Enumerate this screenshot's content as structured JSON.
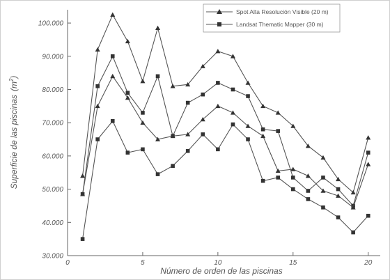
{
  "chart_data": {
    "type": "line",
    "title": "",
    "xlabel": "Número de orden de las piscinas",
    "ylabel_main": "Superficie de las piscinas",
    "ylabel_unit": "(m",
    "ylabel_sup": "2",
    "ylabel_close": ")",
    "xlim": [
      0,
      20.8
    ],
    "ylim": [
      30000,
      104000
    ],
    "xticks": [
      0,
      5,
      10,
      15,
      20
    ],
    "xtick_labels": [
      "0",
      "5",
      "10",
      "15",
      "20"
    ],
    "yticks": [
      30000,
      40000,
      50000,
      60000,
      70000,
      80000,
      90000,
      100000
    ],
    "ytick_labels": [
      "30.000",
      "40.000",
      "50.000",
      "60.000",
      "70.000",
      "80.000",
      "90.000",
      "100.000"
    ],
    "grid": false,
    "legend_position": "top-right",
    "legend": [
      {
        "label": "Spot Alta Resolución Visible (20 m)",
        "marker": "triangle"
      },
      {
        "label": "Landsat Thematic Mapper (30 m)",
        "marker": "square"
      }
    ],
    "series": [
      {
        "marker": "triangle",
        "x": [
          1,
          2,
          3,
          4,
          5,
          6,
          7,
          8,
          9,
          10,
          11,
          12,
          13,
          14,
          15,
          16,
          17,
          18,
          19,
          20
        ],
        "values": [
          54000,
          92000,
          102500,
          94500,
          82500,
          98500,
          81000,
          81500,
          87000,
          91500,
          90000,
          82000,
          75000,
          73000,
          69000,
          63000,
          59500,
          53000,
          49000,
          65500
        ]
      },
      {
        "marker": "square",
        "x": [
          1,
          2,
          3,
          4,
          5,
          6,
          7,
          8,
          9,
          10,
          11,
          12,
          13,
          14,
          15,
          16,
          17,
          18,
          19,
          20
        ],
        "values": [
          48500,
          81000,
          90000,
          79000,
          73000,
          84000,
          66000,
          76000,
          78500,
          82000,
          80000,
          78000,
          68000,
          67500,
          53500,
          49500,
          53500,
          50000,
          45000,
          61000
        ]
      },
      {
        "marker": "triangle",
        "x": [
          1,
          2,
          3,
          4,
          5,
          6,
          7,
          8,
          9,
          10,
          11,
          12,
          13,
          14,
          15,
          16,
          17,
          18,
          19,
          20
        ],
        "values": [
          48500,
          75000,
          84000,
          77500,
          70000,
          65000,
          66000,
          66500,
          71000,
          75000,
          73000,
          69000,
          66000,
          55500,
          56000,
          54000,
          49500,
          48000,
          44500,
          57500
        ]
      },
      {
        "marker": "square",
        "x": [
          1,
          2,
          3,
          4,
          5,
          6,
          7,
          8,
          9,
          10,
          11,
          12,
          13,
          14,
          15,
          16,
          17,
          18,
          19,
          20
        ],
        "values": [
          35000,
          65000,
          70500,
          61000,
          62000,
          54500,
          57000,
          61500,
          66500,
          62000,
          69500,
          65000,
          52500,
          53500,
          50000,
          47000,
          44500,
          41500,
          37000,
          42000
        ]
      }
    ]
  }
}
